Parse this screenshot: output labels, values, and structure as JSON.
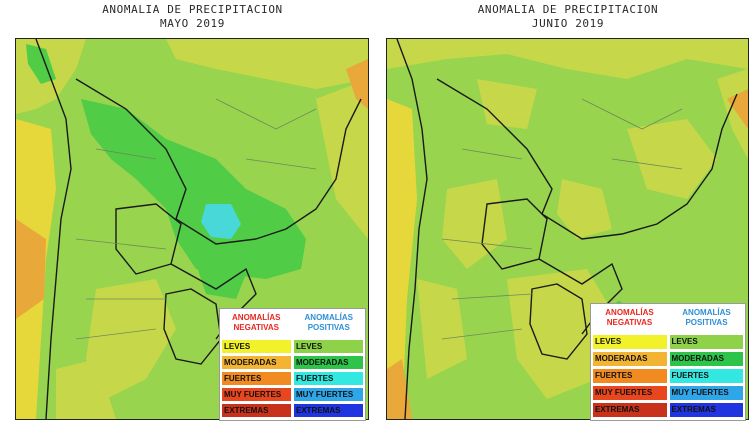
{
  "maps": [
    {
      "title_line1": "ANOMALIA DE PRECIPITACION",
      "title_line2": "MAYO 2019"
    },
    {
      "title_line1": "ANOMALIA DE PRECIPITACION",
      "title_line2": "JUNIO 2019"
    }
  ],
  "legend": {
    "negative_header": "ANOMALÍAS NEGATIVAS",
    "positive_header": "ANOMALÍAS POSITIVAS",
    "negative": [
      "LEVES",
      "MODERADAS",
      "FUERTES",
      "MUY FUERTES",
      "EXTREMAS"
    ],
    "positive": [
      "LEVES",
      "MODERADAS",
      "FUERTES",
      "MUY FUERTES",
      "EXTREMAS"
    ],
    "negative_colors": [
      "#f2f22a",
      "#f2b432",
      "#f28a22",
      "#e8461e",
      "#c8321a"
    ],
    "positive_colors": [
      "#8ed24a",
      "#2ec44a",
      "#32e8e0",
      "#2ea6e8",
      "#2034e0"
    ]
  },
  "colors": {
    "base_green": "#98d44e",
    "light_yellow_green": "#c6d84a",
    "yellow": "#e6d83a",
    "orange": "#e8a83a",
    "green": "#50cc46",
    "cyan": "#48d8d8",
    "border": "#1a1a1a",
    "province_border": "#6f8a5a"
  }
}
